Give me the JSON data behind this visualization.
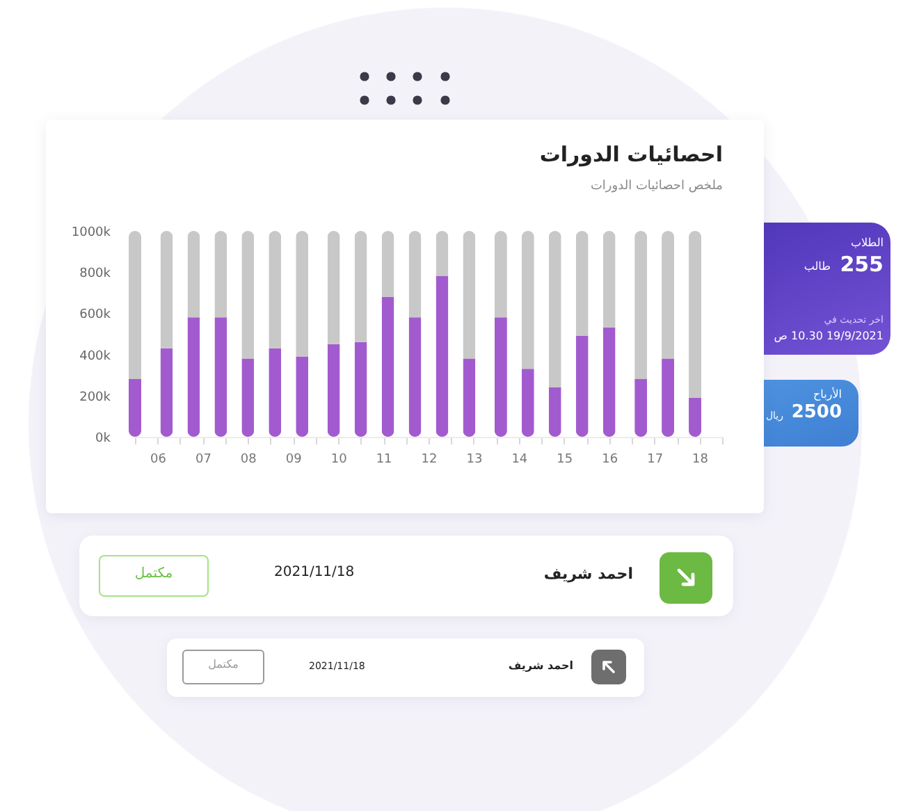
{
  "chart_data": [
    {
      "type": "bar",
      "title": "احصائيات الدورات",
      "subtitle": "ملخص احصائيات الدورات",
      "stacked": true,
      "x": [
        5.5,
        6.2,
        6.8,
        7.4,
        8.0,
        8.6,
        9.2,
        9.9,
        10.5,
        11.1,
        11.7,
        12.3,
        12.9,
        13.6,
        14.2,
        14.8,
        15.4,
        16.0,
        16.7,
        17.3,
        17.9
      ],
      "series": [
        {
          "color": "#a25bcf",
          "values": [
            280,
            430,
            580,
            580,
            380,
            430,
            390,
            450,
            460,
            680,
            580,
            780,
            380,
            580,
            330,
            240,
            490,
            530,
            280,
            380,
            190
          ]
        },
        {
          "color": "#c8c8c8",
          "values": [
            720,
            570,
            420,
            420,
            620,
            570,
            610,
            550,
            540,
            320,
            420,
            220,
            620,
            420,
            670,
            760,
            510,
            470,
            720,
            620,
            810
          ]
        }
      ],
      "xlim": [
        5.5,
        18.5
      ],
      "xticks": [
        {
          "value": 5.5,
          "label": null
        },
        {
          "value": 6,
          "label": "06"
        },
        {
          "value": 6.5,
          "label": null
        },
        {
          "value": 7,
          "label": "07"
        },
        {
          "value": 7.5,
          "label": null
        },
        {
          "value": 8,
          "label": "08"
        },
        {
          "value": 8.5,
          "label": null
        },
        {
          "value": 9,
          "label": "09"
        },
        {
          "value": 9.5,
          "label": null
        },
        {
          "value": 10,
          "label": "10"
        },
        {
          "value": 10.5,
          "label": null
        },
        {
          "value": 11,
          "label": "11"
        },
        {
          "value": 11.5,
          "label": null
        },
        {
          "value": 12,
          "label": "12"
        },
        {
          "value": 12.5,
          "label": null
        },
        {
          "value": 13,
          "label": "13"
        },
        {
          "value": 13.5,
          "label": null
        },
        {
          "value": 14,
          "label": "14"
        },
        {
          "value": 14.5,
          "label": null
        },
        {
          "value": 15,
          "label": "15"
        },
        {
          "value": 15.5,
          "label": null
        },
        {
          "value": 16,
          "label": "16"
        },
        {
          "value": 16.5,
          "label": null
        },
        {
          "value": 17,
          "label": "17"
        },
        {
          "value": 17.5,
          "label": null
        },
        {
          "value": 18,
          "label": "18"
        },
        {
          "value": 18.5,
          "label": null
        }
      ],
      "ylim": [
        0,
        1000
      ],
      "yticks": [
        {
          "value": 0,
          "label": "0k"
        },
        {
          "value": 200,
          "label": "200k"
        },
        {
          "value": 400,
          "label": "400k"
        },
        {
          "value": 600,
          "label": "600k"
        },
        {
          "value": 800,
          "label": "800k"
        },
        {
          "value": 1000,
          "label": "1000k"
        }
      ],
      "grid": false
    },
    {
      "type": "other",
      "annotations": [
        "الطلاب",
        "255",
        "طالب",
        "اخر تحديث في",
        "19/9/2021 10.30 ص",
        "الأرباح",
        "2500",
        "ريال",
        "احمد شريف",
        "2021/11/18",
        "مكتمل",
        "احمد شريف",
        "2021/11/18",
        "مكتمل"
      ]
    }
  ]
}
